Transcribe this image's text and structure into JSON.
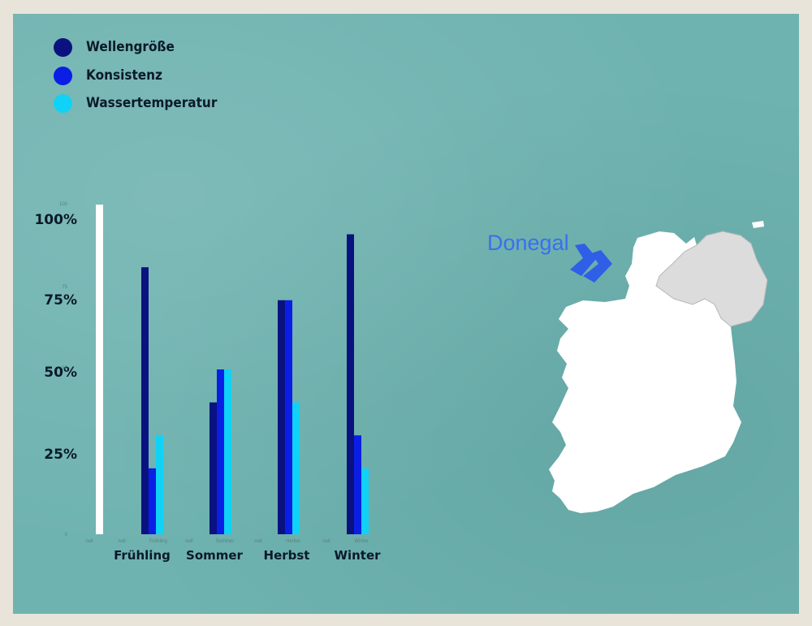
{
  "legend": [
    {
      "label": "Wellengröße",
      "color": "#0a1280"
    },
    {
      "label": "Konsistenz",
      "color": "#0b1ee6"
    },
    {
      "label": "Wassertemperatur",
      "color": "#10d2f6"
    }
  ],
  "chart_data": {
    "type": "bar",
    "categories": [
      "Frühling",
      "Sommer",
      "Herbst",
      "Winter"
    ],
    "series": [
      {
        "name": "Wellengröße",
        "values": [
          81,
          40,
          71,
          91
        ]
      },
      {
        "name": "Konsistenz",
        "values": [
          20,
          50,
          71,
          30
        ]
      },
      {
        "name": "Wassertemperatur",
        "values": [
          30,
          50,
          40,
          20
        ]
      }
    ],
    "reference_bar_value": 100,
    "ylim": [
      0,
      100
    ],
    "yticks": [
      {
        "value": 100,
        "label": "100%"
      },
      {
        "value": 75,
        "label": "75%"
      },
      {
        "value": 50,
        "label": "50%"
      },
      {
        "value": 25,
        "label": "25%"
      }
    ],
    "small_ticks": [
      {
        "value": 100,
        "label": "100"
      },
      {
        "value": 75,
        "label": "75"
      },
      {
        "value": 50,
        "label": "50"
      },
      {
        "value": 0,
        "label": "0"
      }
    ],
    "small_xlabels": [
      "null",
      "null",
      "Frühling",
      "null",
      "Sommer",
      "null",
      "Herbst",
      "null",
      "Winter"
    ],
    "grid": false,
    "legend_position": "top-left"
  },
  "map": {
    "region_label": "Donegal",
    "colors": {
      "ireland": "#ffffff",
      "northern_ireland": "#dcdcdc",
      "arrow": "#2f5fe6"
    }
  }
}
